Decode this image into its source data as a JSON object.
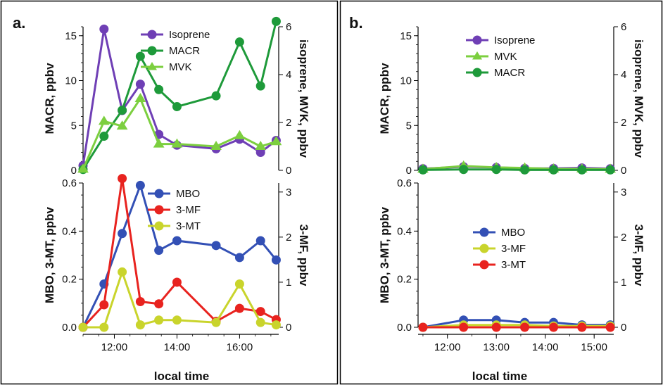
{
  "colors": {
    "purple": "#6f3fb5",
    "green": "#1e9a3a",
    "lightgreen": "#7ccf3f",
    "blue": "#3350b5",
    "red": "#e8231f",
    "yellow": "#c9d42c"
  },
  "panels": [
    {
      "label": "a.",
      "xlabel": "local time",
      "xticks": [
        "12:00",
        "14:00",
        "16:00"
      ]
    },
    {
      "label": "b.",
      "xlabel": "local time",
      "xticks": [
        "12:00",
        "13:00",
        "14:00",
        "15:00"
      ]
    }
  ],
  "chart_data": [
    {
      "type": "line",
      "panel": "a",
      "position": "top",
      "ylabel": "MACR, ppbv",
      "ylim": [
        0,
        16
      ],
      "yticks": [
        0,
        5,
        10,
        15
      ],
      "y2label": "isoprene, MVK, ppbv",
      "y2lim": [
        0,
        6
      ],
      "y2ticks": [
        0,
        2,
        4,
        6
      ],
      "xlim": [
        11.0,
        17.25
      ],
      "legend": "top-center",
      "series": [
        {
          "name": "Isoprene",
          "axis": "right",
          "color": "purple",
          "marker": "circle",
          "x": [
            11.0,
            11.67,
            12.25,
            12.83,
            13.42,
            14.0,
            15.25,
            16.0,
            16.67,
            17.17
          ],
          "y": [
            0.2,
            5.9,
            2.5,
            3.6,
            1.5,
            1.05,
            0.9,
            1.3,
            0.75,
            1.25
          ]
        },
        {
          "name": "MACR",
          "axis": "left",
          "color": "green",
          "marker": "circle",
          "x": [
            11.0,
            11.67,
            12.25,
            12.83,
            13.42,
            14.0,
            15.25,
            16.0,
            16.67,
            17.17
          ],
          "y": [
            0.1,
            3.8,
            6.7,
            12.7,
            9.0,
            7.1,
            8.3,
            14.3,
            9.4,
            16.6
          ]
        },
        {
          "name": "MVK",
          "axis": "right",
          "color": "lightgreen",
          "marker": "triangle",
          "x": [
            11.0,
            11.67,
            12.25,
            12.83,
            13.42,
            14.0,
            15.25,
            16.0,
            16.67,
            17.17
          ],
          "y": [
            0.05,
            2.05,
            1.85,
            3.0,
            1.1,
            1.1,
            1.0,
            1.45,
            1.0,
            1.2
          ]
        }
      ]
    },
    {
      "type": "line",
      "panel": "a",
      "position": "bottom",
      "ylabel": "MBO, 3-MT, ppbv",
      "ylim": [
        0,
        0.6
      ],
      "yticks": [
        "0.0",
        "0.2",
        "0.4",
        "0.6"
      ],
      "y2label": "3-MF, ppbv",
      "y2lim": [
        0,
        3.2
      ],
      "y2ticks": [
        0,
        1,
        2,
        3
      ],
      "xlim": [
        11.0,
        17.25
      ],
      "legend": "top-center",
      "series": [
        {
          "name": "MBO",
          "axis": "left",
          "color": "blue",
          "marker": "circle",
          "x": [
            11.0,
            11.67,
            12.25,
            12.83,
            13.42,
            14.0,
            15.25,
            16.0,
            16.67,
            17.17
          ],
          "y": [
            0.0,
            0.18,
            0.39,
            0.59,
            0.32,
            0.36,
            0.34,
            0.29,
            0.36,
            0.28
          ]
        },
        {
          "name": "3-MF",
          "axis": "right",
          "color": "red",
          "marker": "circle",
          "x": [
            11.0,
            11.67,
            12.25,
            12.83,
            13.42,
            14.0,
            15.25,
            16.0,
            16.67,
            17.17
          ],
          "y": [
            0.0,
            0.5,
            3.3,
            0.57,
            0.52,
            1.0,
            0.13,
            0.42,
            0.35,
            0.17
          ]
        },
        {
          "name": "3-MT",
          "axis": "left",
          "color": "yellow",
          "marker": "circle",
          "x": [
            11.0,
            11.67,
            12.25,
            12.83,
            13.42,
            14.0,
            15.25,
            16.0,
            16.67,
            17.17
          ],
          "y": [
            0.0,
            0.0,
            0.23,
            0.01,
            0.03,
            0.03,
            0.02,
            0.18,
            0.02,
            0.01
          ]
        }
      ]
    },
    {
      "type": "line",
      "panel": "b",
      "position": "top",
      "ylabel": "MACR, ppbv",
      "ylim": [
        0,
        16
      ],
      "yticks": [
        0,
        5,
        10,
        15
      ],
      "y2label": "isoprene, MVK, ppbv",
      "y2lim": [
        0,
        6
      ],
      "y2ticks": [
        0,
        2,
        4,
        6
      ],
      "xlim": [
        11.4,
        15.4
      ],
      "legend": "top-center",
      "series": [
        {
          "name": "Isoprene",
          "axis": "right",
          "color": "purple",
          "marker": "circle",
          "x": [
            11.5,
            12.33,
            13.0,
            13.58,
            14.17,
            14.75,
            15.33
          ],
          "y": [
            0.07,
            0.15,
            0.12,
            0.08,
            0.08,
            0.1,
            0.07
          ]
        },
        {
          "name": "MVK",
          "axis": "right",
          "color": "lightgreen",
          "marker": "triangle",
          "x": [
            11.5,
            12.33,
            13.0,
            13.58,
            14.17,
            14.75,
            15.33
          ],
          "y": [
            0.05,
            0.18,
            0.12,
            0.1,
            0.06,
            0.06,
            0.05
          ]
        },
        {
          "name": "MACR",
          "axis": "left",
          "color": "green",
          "marker": "circle",
          "x": [
            11.5,
            12.33,
            13.0,
            13.58,
            14.17,
            14.75,
            15.33
          ],
          "y": [
            0.05,
            0.1,
            0.1,
            0.05,
            0.05,
            0.05,
            0.05
          ]
        }
      ]
    },
    {
      "type": "line",
      "panel": "b",
      "position": "bottom",
      "ylabel": "MBO, 3-MT, ppbv",
      "ylim": [
        0,
        0.6
      ],
      "yticks": [
        "0.0",
        "0.2",
        "0.4",
        "0.6"
      ],
      "y2label": "3-MF, ppbv",
      "y2lim": [
        0,
        3.2
      ],
      "y2ticks": [
        0,
        1,
        2,
        3
      ],
      "xlim": [
        11.4,
        15.4
      ],
      "legend": "center",
      "series": [
        {
          "name": "MBO",
          "axis": "left",
          "color": "blue",
          "marker": "circle",
          "x": [
            11.5,
            12.33,
            13.0,
            13.58,
            14.17,
            14.75,
            15.33
          ],
          "y": [
            0.0,
            0.03,
            0.03,
            0.02,
            0.02,
            0.01,
            0.01
          ]
        },
        {
          "name": "3-MF",
          "axis": "right",
          "color": "yellow",
          "marker": "circle",
          "x": [
            11.5,
            12.33,
            13.0,
            13.58,
            14.17,
            14.75,
            15.33
          ],
          "y": [
            0.0,
            0.05,
            0.05,
            0.05,
            0.03,
            0.03,
            0.03
          ]
        },
        {
          "name": "3-MT",
          "axis": "left",
          "color": "red",
          "marker": "circle",
          "x": [
            11.5,
            12.33,
            13.0,
            13.58,
            14.17,
            14.75,
            15.33
          ],
          "y": [
            0.0,
            0.0,
            0.0,
            0.0,
            0.0,
            0.0,
            0.0
          ]
        }
      ]
    }
  ]
}
